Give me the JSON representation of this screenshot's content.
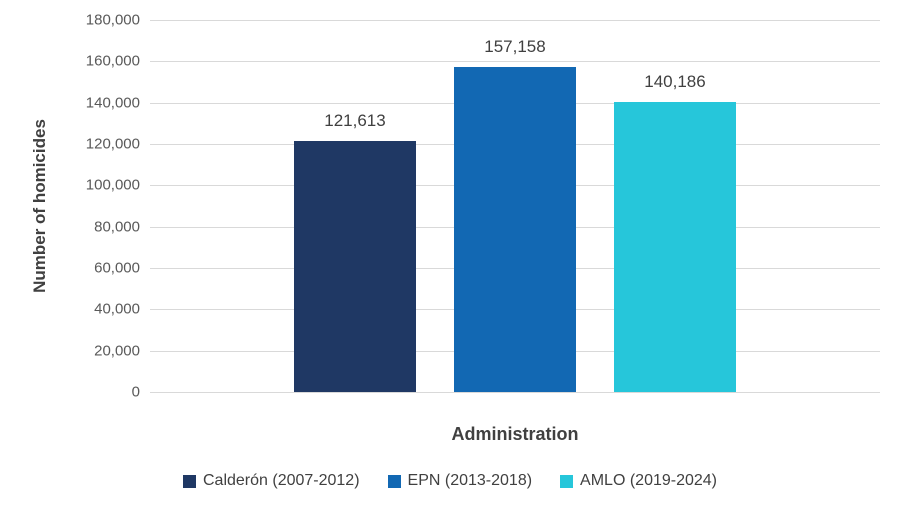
{
  "chart_data": {
    "type": "bar",
    "title": "",
    "xlabel": "Administration",
    "ylabel": "Number of homicides",
    "ylim": [
      0,
      180000
    ],
    "ytick_step": 20000,
    "grid": true,
    "legend_position": "bottom",
    "categories": [
      "Administration"
    ],
    "series": [
      {
        "name": "Calderón (2007-2012)",
        "value": 121613,
        "color": "#1F3864"
      },
      {
        "name": "EPN (2013-2018)",
        "value": 157158,
        "color": "#1268B3"
      },
      {
        "name": "AMLO (2019-2024)",
        "value": 140186,
        "color": "#26C6DA"
      }
    ],
    "value_labels": [
      "121,613",
      "157,158",
      "140,186"
    ],
    "ytick_labels": [
      "0",
      "20,000",
      "40,000",
      "60,000",
      "80,000",
      "100,000",
      "120,000",
      "140,000",
      "160,000",
      "180,000"
    ]
  }
}
